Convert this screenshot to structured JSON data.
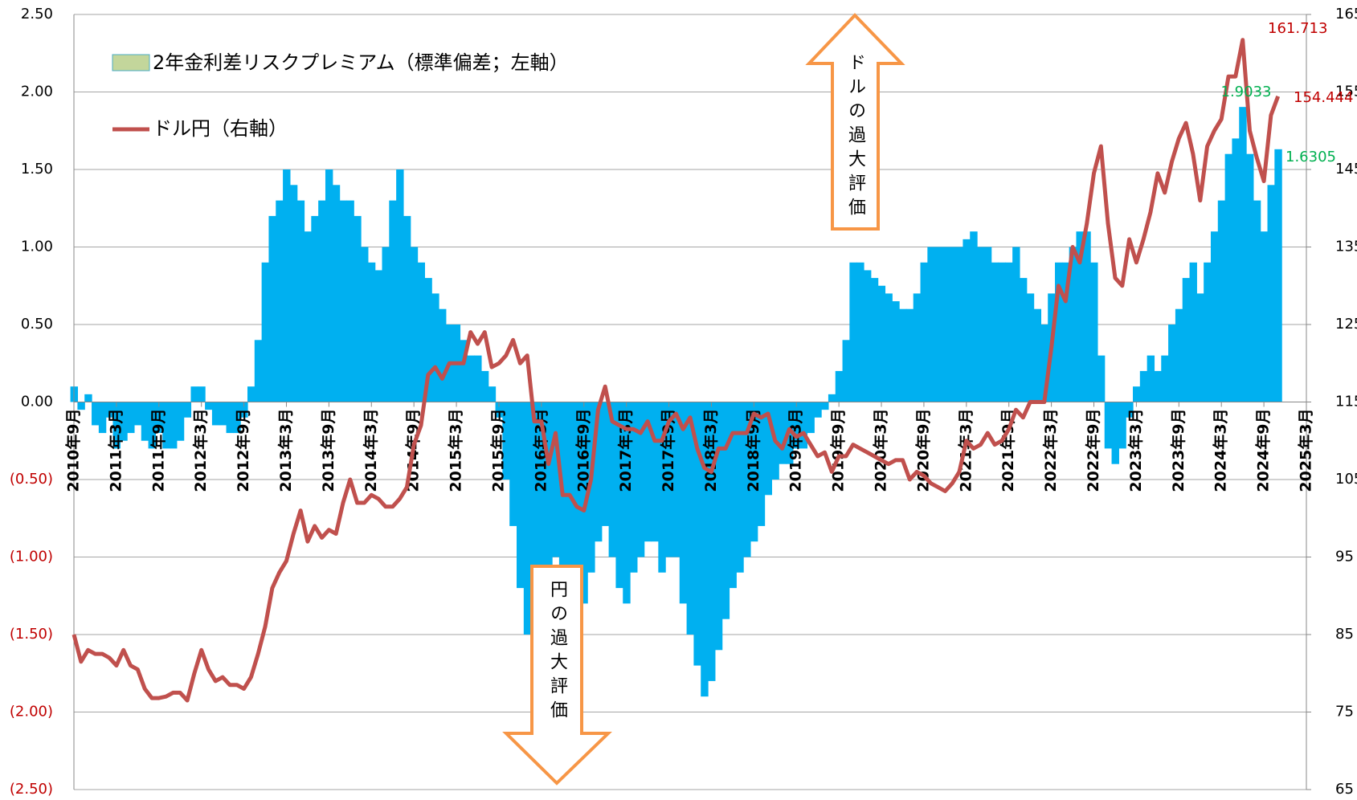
{
  "chart_data": {
    "type": "bar-line",
    "categories": [
      "2010年9月",
      null,
      null,
      null,
      null,
      null,
      "2011年3月",
      null,
      null,
      null,
      null,
      null,
      "2011年9月",
      null,
      null,
      null,
      null,
      null,
      "2012年3月",
      null,
      null,
      null,
      null,
      null,
      "2012年9月",
      null,
      null,
      null,
      null,
      null,
      "2013年3月",
      null,
      null,
      null,
      null,
      null,
      "2013年9月",
      null,
      null,
      null,
      null,
      null,
      "2014年3月",
      null,
      null,
      null,
      null,
      null,
      "2014年9月",
      null,
      null,
      null,
      null,
      null,
      "2015年3月",
      null,
      null,
      null,
      null,
      null,
      "2015年9月",
      null,
      null,
      null,
      null,
      null,
      "2016年3月",
      null,
      null,
      null,
      null,
      null,
      "2016年9月",
      null,
      null,
      null,
      null,
      null,
      "2017年3月",
      null,
      null,
      null,
      null,
      null,
      "2017年9月",
      null,
      null,
      null,
      null,
      null,
      "2018年3月",
      null,
      null,
      null,
      null,
      null,
      "2018年9月",
      null,
      null,
      null,
      null,
      null,
      "2019年3月",
      null,
      null,
      null,
      null,
      null,
      "2019年9月",
      null,
      null,
      null,
      null,
      null,
      "2020年3月",
      null,
      null,
      null,
      null,
      null,
      "2020年9月",
      null,
      null,
      null,
      null,
      null,
      "2021年3月",
      null,
      null,
      null,
      null,
      null,
      "2021年9月",
      null,
      null,
      null,
      null,
      null,
      "2022年3月",
      null,
      null,
      null,
      null,
      null,
      "2022年9月",
      null,
      null,
      null,
      null,
      null,
      "2023年3月",
      null,
      null,
      null,
      null,
      null,
      "2023年9月",
      null,
      null,
      null,
      null,
      null,
      "2024年3月",
      null,
      null,
      null,
      null,
      null,
      "2024年9月",
      null,
      null,
      null,
      null,
      null,
      "2025年3月"
    ],
    "series": [
      {
        "name": "2年金利差リスクプレミアム（標準偏差；左軸）",
        "color": "#00b0f0",
        "legend_color": "#c3d69b",
        "axis": "y",
        "values": [
          0.1,
          -0.05,
          0.05,
          -0.15,
          -0.2,
          -0.1,
          -0.3,
          -0.25,
          -0.2,
          -0.15,
          -0.25,
          -0.3,
          -0.2,
          -0.3,
          -0.3,
          -0.25,
          -0.1,
          0.1,
          0.1,
          -0.05,
          -0.15,
          -0.15,
          -0.2,
          -0.2,
          -0.1,
          0.1,
          0.4,
          0.9,
          1.2,
          1.3,
          1.5,
          1.4,
          1.3,
          1.1,
          1.2,
          1.3,
          1.5,
          1.4,
          1.3,
          1.3,
          1.2,
          1.0,
          0.9,
          0.85,
          1.0,
          1.3,
          1.5,
          1.2,
          1.0,
          0.9,
          0.8,
          0.7,
          0.6,
          0.5,
          0.5,
          0.4,
          0.3,
          0.3,
          0.2,
          0.1,
          -0.1,
          -0.5,
          -0.8,
          -1.2,
          -1.5,
          -1.3,
          -1.1,
          -1.2,
          -1.0,
          -1.3,
          -1.5,
          -1.4,
          -1.3,
          -1.1,
          -0.9,
          -0.8,
          -1.0,
          -1.2,
          -1.3,
          -1.1,
          -1.0,
          -0.9,
          -0.9,
          -1.1,
          -1.0,
          -1.0,
          -1.3,
          -1.5,
          -1.7,
          -1.9,
          -1.8,
          -1.6,
          -1.4,
          -1.2,
          -1.1,
          -1.0,
          -0.9,
          -0.8,
          -0.6,
          -0.5,
          -0.4,
          -0.4,
          -0.3,
          -0.3,
          -0.2,
          -0.1,
          -0.05,
          0.05,
          0.2,
          0.4,
          0.9,
          0.9,
          0.85,
          0.8,
          0.75,
          0.7,
          0.65,
          0.6,
          0.6,
          0.7,
          0.9,
          1.0,
          1.0,
          1.0,
          1.0,
          1.0,
          1.05,
          1.1,
          1.0,
          1.0,
          0.9,
          0.9,
          0.9,
          1.0,
          0.8,
          0.7,
          0.6,
          0.5,
          0.7,
          0.9,
          0.9,
          1.0,
          1.1,
          1.1,
          0.9,
          0.3,
          -0.3,
          -0.4,
          -0.3,
          -0.1,
          0.1,
          0.2,
          0.3,
          0.2,
          0.3,
          0.5,
          0.6,
          0.8,
          0.9,
          0.7,
          0.9,
          1.1,
          1.3,
          1.6,
          1.7,
          1.9033,
          1.6,
          1.3,
          1.1,
          1.4,
          1.6305,
          null,
          null,
          null,
          null
        ]
      },
      {
        "name": "ドル円（右軸）",
        "color": "#c0504d",
        "axis": "y2",
        "values": [
          85,
          81.5,
          83,
          82.5,
          82.5,
          82,
          81,
          83,
          81,
          80.5,
          78,
          76.8,
          76.8,
          77,
          77.5,
          77.5,
          76.5,
          80,
          83,
          80.5,
          79,
          79.5,
          78.5,
          78.5,
          78,
          79.5,
          82.5,
          86,
          91,
          93,
          94.5,
          98,
          101,
          97,
          99,
          97.5,
          98.5,
          98,
          102,
          105,
          102,
          102,
          103,
          102.5,
          101.5,
          101.5,
          102.5,
          104,
          109.5,
          112,
          118.5,
          119.5,
          118,
          120,
          120,
          120,
          124,
          122.5,
          124,
          119.5,
          120,
          121,
          123,
          120,
          121,
          112.5,
          112.5,
          107,
          111,
          103,
          103,
          101.5,
          101,
          105,
          114,
          117,
          112.5,
          112,
          111.5,
          111.5,
          111,
          112.5,
          110,
          110,
          112.5,
          113.5,
          111.5,
          113,
          109,
          106.5,
          106,
          109,
          109,
          111,
          111,
          111,
          113.5,
          113,
          113.5,
          110,
          109,
          111.5,
          110.5,
          111,
          109.5,
          108,
          108.5,
          106,
          108,
          108,
          109.5,
          109,
          108.5,
          108,
          107.5,
          107,
          107.5,
          107.5,
          105,
          106,
          105.5,
          104.5,
          104,
          103.5,
          104.5,
          106,
          110,
          109,
          109.5,
          111,
          109.5,
          110,
          111.5,
          114,
          113,
          115,
          115,
          115,
          122,
          130,
          128,
          135,
          133,
          138,
          144.5,
          148,
          138,
          131,
          130,
          136,
          133,
          136,
          139.5,
          144.5,
          142,
          146,
          149,
          151,
          147,
          141,
          148,
          150,
          151.5,
          157,
          157,
          161.713,
          150,
          146.5,
          143.5,
          152,
          154.444,
          null,
          null,
          null,
          null
        ]
      }
    ],
    "ylim": [
      -2.5,
      2.5
    ],
    "yticks": [
      {
        "value": -2.5,
        "label": "(2.50)"
      },
      {
        "value": -2,
        "label": "(2.00)"
      },
      {
        "value": -1.5,
        "label": "(1.50)"
      },
      {
        "value": -1,
        "label": "(1.00)"
      },
      {
        "value": -0.5,
        "label": "(0.50)"
      },
      {
        "value": 0,
        "label": "0.00"
      },
      {
        "value": 0.5,
        "label": "0.50"
      },
      {
        "value": 1,
        "label": "1.00"
      },
      {
        "value": 1.5,
        "label": "1.50"
      },
      {
        "value": 2,
        "label": "2.00"
      },
      {
        "value": 2.5,
        "label": "2.50"
      }
    ],
    "y2lim": [
      65,
      165
    ],
    "y2ticks": [
      65,
      75,
      85,
      95,
      105,
      115,
      125,
      135,
      145,
      155,
      165
    ],
    "grid": true,
    "legend": "top-left",
    "annotations": [
      "161.713",
      "1.9033",
      "154.444",
      "1.6305",
      "ドルの過大評価",
      "円の過大評価"
    ]
  }
}
